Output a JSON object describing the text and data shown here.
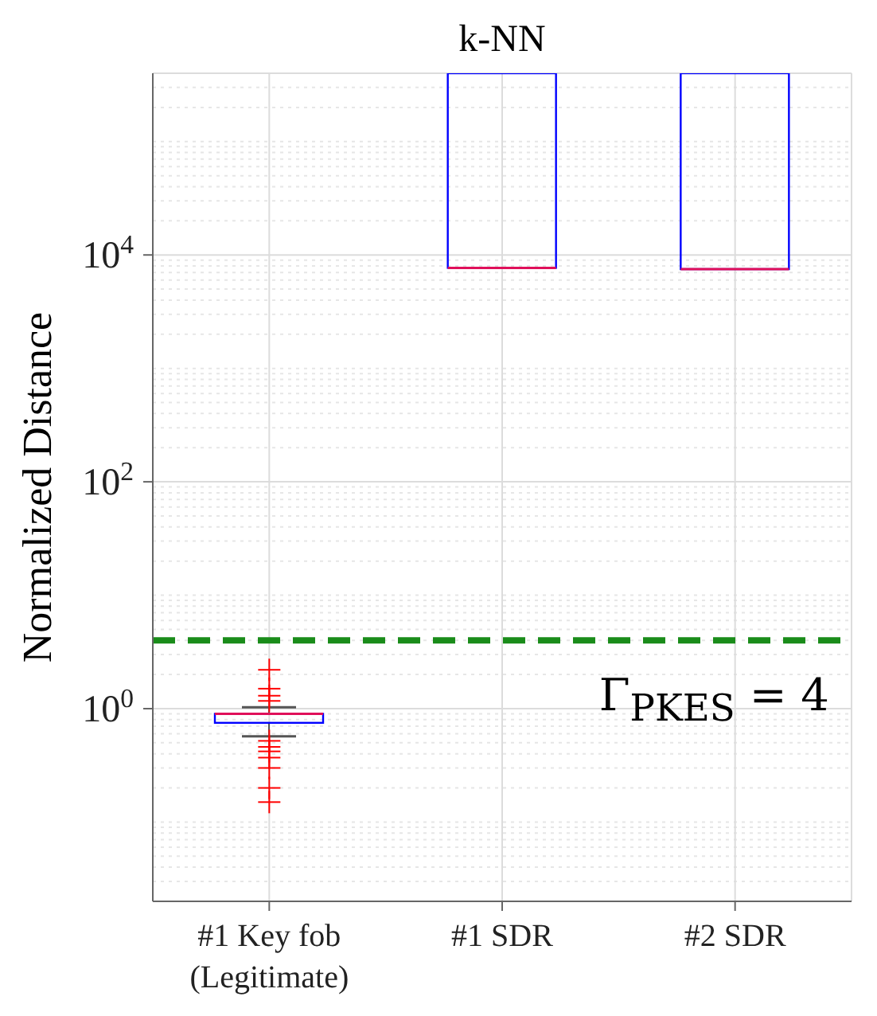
{
  "chart_data": {
    "type": "box",
    "title": "k-NN",
    "ylabel": "Normalized Distance",
    "categories": [
      "#1 Key fob\n(Legitimate)",
      "#1 SDR",
      "#2 SDR"
    ],
    "color": "#0000ff",
    "boxes": [
      {
        "low": 0.57,
        "q1": 0.75,
        "median": 0.9,
        "q3": 0.9,
        "high": 1.03,
        "outliers": [
          2.2,
          1.5,
          1.3,
          1.17,
          0.52,
          0.46,
          0.42,
          0.37,
          0.3,
          0.2,
          0.15
        ]
      },
      {
        "low": 7700,
        "q1": 7700,
        "median": 7700,
        "q3": 400000,
        "high": 400000
      },
      {
        "low": 7500,
        "q1": 7500,
        "median": 7500,
        "q3": 400000,
        "high": 400000
      }
    ],
    "ylim": [
      0.02,
      400000
    ],
    "yticks": [
      {
        "value": 1,
        "label": "10$^{0}$"
      },
      {
        "value": 100,
        "label": "10$^{2}$"
      },
      {
        "value": 10000,
        "label": "10$^{4}$"
      }
    ],
    "log": true,
    "grid": true,
    "ref_lines": [
      {
        "axis": "y",
        "value": 4,
        "color": "#1a8c1a",
        "line_style": "dashed"
      }
    ],
    "annotations": [
      "Γ$_{PKES}$ = 4"
    ]
  }
}
